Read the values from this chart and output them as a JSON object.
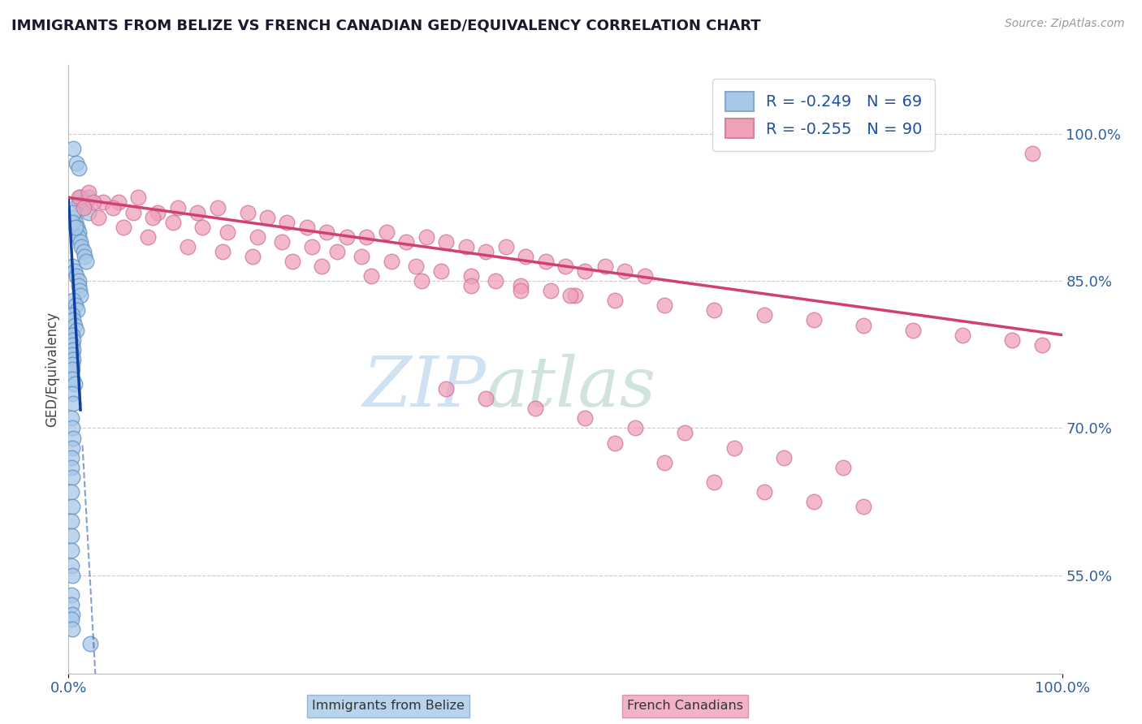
{
  "title": "IMMIGRANTS FROM BELIZE VS FRENCH CANADIAN GED/EQUIVALENCY CORRELATION CHART",
  "source": "Source: ZipAtlas.com",
  "ylabel": "GED/Equivalency",
  "xlim": [
    0.0,
    100.0
  ],
  "ylim": [
    45.0,
    107.0
  ],
  "yticks": [
    55.0,
    70.0,
    85.0,
    100.0
  ],
  "ytick_labels": [
    "55.0%",
    "70.0%",
    "85.0%",
    "100.0%"
  ],
  "xticks": [
    0.0,
    100.0
  ],
  "xtick_labels": [
    "0.0%",
    "100.0%"
  ],
  "legend_blue_R": "-0.249",
  "legend_blue_N": "69",
  "legend_pink_R": "-0.255",
  "legend_pink_N": "90",
  "blue_color": "#A8C8E8",
  "pink_color": "#F0A0B8",
  "blue_line_color": "#1040A0",
  "pink_line_color": "#D04070",
  "background_color": "#FFFFFF",
  "watermark_zip": "ZIP",
  "watermark_atlas": "atlas",
  "blue_line_x0": 0.0,
  "blue_line_y0": 93.5,
  "blue_line_slope": -18.0,
  "pink_line_x0": 0.0,
  "pink_line_y0": 93.5,
  "pink_line_x1": 100.0,
  "pink_line_y1": 79.5,
  "blue_scatter_x": [
    0.5,
    0.8,
    1.0,
    1.0,
    1.2,
    1.5,
    1.5,
    1.8,
    2.0,
    2.0,
    0.5,
    0.7,
    0.9,
    1.0,
    1.0,
    1.2,
    1.3,
    1.5,
    1.6,
    1.8,
    0.4,
    0.6,
    0.8,
    1.0,
    1.0,
    1.1,
    1.2,
    0.5,
    0.7,
    0.9,
    0.4,
    0.5,
    0.6,
    0.8,
    0.4,
    0.5,
    0.4,
    0.5,
    0.4,
    0.5,
    0.4,
    0.4,
    0.4,
    0.6,
    0.4,
    0.5,
    0.3,
    0.4,
    0.5,
    0.4,
    0.3,
    0.3,
    0.4,
    0.3,
    0.4,
    0.3,
    0.3,
    0.3,
    0.3,
    0.4,
    0.3,
    0.3,
    0.4,
    0.3,
    0.4,
    0.5,
    0.4,
    0.7,
    2.2
  ],
  "blue_scatter_y": [
    98.5,
    97.0,
    96.5,
    93.0,
    93.5,
    93.0,
    92.5,
    93.0,
    93.5,
    92.0,
    91.5,
    91.0,
    90.5,
    90.0,
    89.5,
    89.0,
    88.5,
    88.0,
    87.5,
    87.0,
    86.5,
    86.0,
    85.5,
    85.0,
    84.5,
    84.0,
    83.5,
    83.0,
    82.5,
    82.0,
    81.5,
    81.0,
    80.5,
    80.0,
    79.5,
    79.0,
    78.5,
    78.0,
    77.5,
    77.0,
    76.5,
    76.0,
    75.0,
    74.5,
    73.5,
    72.5,
    71.0,
    70.0,
    69.0,
    68.0,
    67.0,
    66.0,
    65.0,
    63.5,
    62.0,
    60.5,
    59.0,
    57.5,
    56.0,
    55.0,
    53.0,
    52.0,
    51.0,
    50.5,
    49.5,
    92.0,
    91.0,
    90.5,
    48.0
  ],
  "pink_scatter_x": [
    1.0,
    2.0,
    3.5,
    5.0,
    7.0,
    9.0,
    11.0,
    13.0,
    15.0,
    18.0,
    20.0,
    22.0,
    24.0,
    26.0,
    28.0,
    30.0,
    32.0,
    34.0,
    36.0,
    38.0,
    40.0,
    42.0,
    44.0,
    46.0,
    48.0,
    50.0,
    52.0,
    54.0,
    56.0,
    58.0,
    2.5,
    4.5,
    6.5,
    8.5,
    10.5,
    13.5,
    16.0,
    19.0,
    21.5,
    24.5,
    27.0,
    29.5,
    32.5,
    35.0,
    37.5,
    40.5,
    43.0,
    45.5,
    48.5,
    51.0,
    1.5,
    3.0,
    5.5,
    8.0,
    12.0,
    15.5,
    18.5,
    22.5,
    25.5,
    30.5,
    35.5,
    40.5,
    45.5,
    50.5,
    55.0,
    60.0,
    65.0,
    70.0,
    75.0,
    80.0,
    85.0,
    90.0,
    95.0,
    98.0,
    55.0,
    60.0,
    65.0,
    70.0,
    75.0,
    80.0,
    38.0,
    42.0,
    47.0,
    52.0,
    57.0,
    62.0,
    67.0,
    72.0,
    78.0,
    97.0
  ],
  "pink_scatter_y": [
    93.5,
    94.0,
    93.0,
    93.0,
    93.5,
    92.0,
    92.5,
    92.0,
    92.5,
    92.0,
    91.5,
    91.0,
    90.5,
    90.0,
    89.5,
    89.5,
    90.0,
    89.0,
    89.5,
    89.0,
    88.5,
    88.0,
    88.5,
    87.5,
    87.0,
    86.5,
    86.0,
    86.5,
    86.0,
    85.5,
    93.0,
    92.5,
    92.0,
    91.5,
    91.0,
    90.5,
    90.0,
    89.5,
    89.0,
    88.5,
    88.0,
    87.5,
    87.0,
    86.5,
    86.0,
    85.5,
    85.0,
    84.5,
    84.0,
    83.5,
    92.5,
    91.5,
    90.5,
    89.5,
    88.5,
    88.0,
    87.5,
    87.0,
    86.5,
    85.5,
    85.0,
    84.5,
    84.0,
    83.5,
    83.0,
    82.5,
    82.0,
    81.5,
    81.0,
    80.5,
    80.0,
    79.5,
    79.0,
    78.5,
    68.5,
    66.5,
    64.5,
    63.5,
    62.5,
    62.0,
    74.0,
    73.0,
    72.0,
    71.0,
    70.0,
    69.5,
    68.0,
    67.0,
    66.0,
    98.0
  ]
}
